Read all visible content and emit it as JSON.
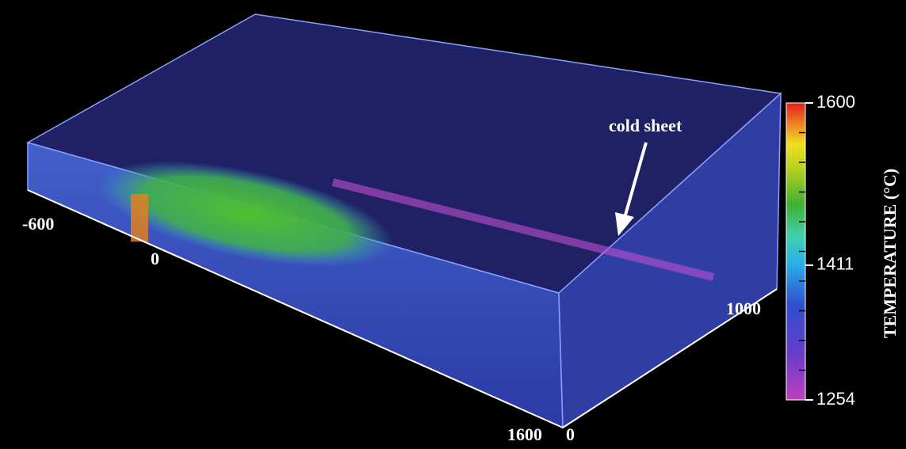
{
  "annotation": "cold sheet",
  "axis_labels": [
    -600,
    0,
    1600,
    0,
    1000
  ],
  "colorbar": {
    "title": "TEMPERATURE (°C)",
    "ticks": [
      1600,
      1411,
      1254
    ]
  }
}
